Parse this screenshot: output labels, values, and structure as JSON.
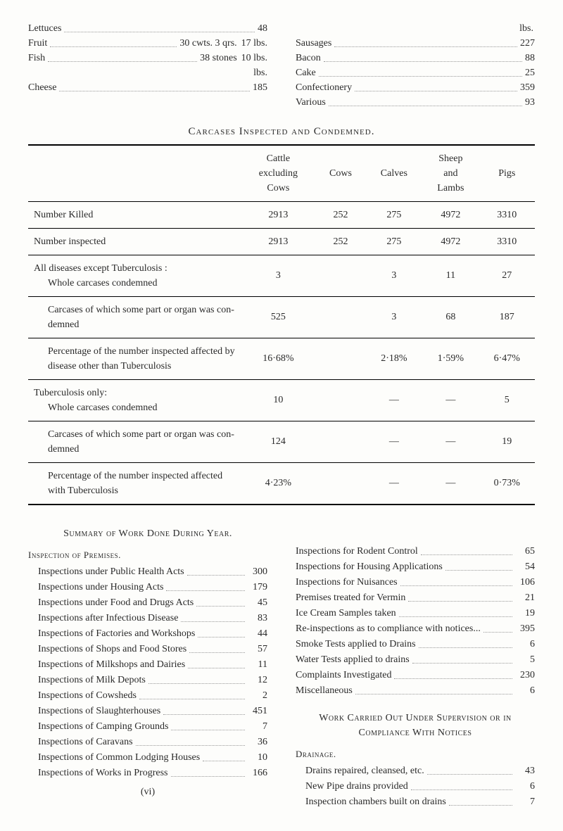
{
  "top_left": {
    "lines": [
      {
        "label": "Lettuces",
        "mid": "",
        "val": "48"
      },
      {
        "label": "Fruit",
        "mid": "30 cwts. 3 qrs.",
        "val": "17 lbs."
      },
      {
        "label": "Fish",
        "mid": "38 stones",
        "val": "10 lbs."
      },
      {
        "label": "",
        "mid": "",
        "val": "lbs."
      },
      {
        "label": "Cheese",
        "mid": "",
        "val": "185"
      }
    ]
  },
  "top_right": {
    "head": "lbs.",
    "lines": [
      {
        "label": "Sausages",
        "val": "227"
      },
      {
        "label": "Bacon",
        "val": "88"
      },
      {
        "label": "Cake",
        "val": "25"
      },
      {
        "label": "Confectionery",
        "val": "359"
      },
      {
        "label": "Various",
        "val": "93"
      }
    ]
  },
  "carcases": {
    "title": "Carcases Inspected and Condemned.",
    "columns": [
      "",
      "Cattle excluding Cows",
      "Cows",
      "Calves",
      "Sheep and Lambs",
      "Pigs"
    ],
    "rows": [
      {
        "label": "Number Killed",
        "vals": [
          "2913",
          "252",
          "275",
          "4972",
          "3310"
        ]
      },
      {
        "label": "Number inspected",
        "vals": [
          "2913",
          "252",
          "275",
          "4972",
          "3310"
        ]
      },
      {
        "label": "All diseases except Tuberculosis :<br><span class='indent1'>Whole carcases condemned</span>",
        "vals": [
          "3",
          "",
          "3",
          "11",
          "27"
        ]
      },
      {
        "label": "<span class='indent1'>Carcases of which some part or organ was con­demned</span>",
        "vals": [
          "525",
          "",
          "3",
          "68",
          "187"
        ]
      },
      {
        "label": "<span class='indent1'>Percentage of the number inspected affected by disease other than Tuberculosis</span>",
        "vals": [
          "16·68%",
          "",
          "2·18%",
          "1·59%",
          "6·47%"
        ]
      },
      {
        "label": "Tuberculosis only:<br><span class='indent1'>Whole carcases condemned</span>",
        "vals": [
          "10",
          "",
          "—",
          "—",
          "5"
        ]
      },
      {
        "label": "<span class='indent1'>Carcases of which some part or organ was con­demned</span>",
        "vals": [
          "124",
          "",
          "—",
          "—",
          "19"
        ]
      },
      {
        "label": "<span class='indent1'>Percentage of the number inspected affected with Tuberculosis</span>",
        "vals": [
          "4·23%",
          "",
          "—",
          "—",
          "0·73%"
        ]
      }
    ]
  },
  "left_summary": {
    "title": "Summary of Work Done During Year.",
    "section": "Inspection of Premises.",
    "items": [
      {
        "label": "Inspections under Public Health Acts",
        "val": "300"
      },
      {
        "label": "Inspections under Housing Acts",
        "val": "179"
      },
      {
        "label": "Inspections under Food and Drugs Acts",
        "val": "45"
      },
      {
        "label": "Inspections after Infectious Disease",
        "val": "83"
      },
      {
        "label": "Inspections of Factories and Workshops",
        "val": "44"
      },
      {
        "label": "Inspections of Shops and Food Stores",
        "val": "57"
      },
      {
        "label": "Inspections of Milkshops and Dairies",
        "val": "11"
      },
      {
        "label": "Inspections of Milk Depots",
        "val": "12"
      },
      {
        "label": "Inspections of Cowsheds",
        "val": "2"
      },
      {
        "label": "Inspections of Slaughterhouses",
        "val": "451"
      },
      {
        "label": "Inspections of Camping Grounds",
        "val": "7"
      },
      {
        "label": "Inspections of Caravans",
        "val": "36"
      },
      {
        "label": "Inspections of Common Lodging Houses",
        "val": "10"
      },
      {
        "label": "Inspections of Works in Progress",
        "val": "166"
      }
    ],
    "roman": "(vi)"
  },
  "right_summary": {
    "items_top": [
      {
        "label": "Inspections for Rodent Control",
        "val": "65"
      },
      {
        "label": "Inspections for Housing Applications",
        "val": "54"
      },
      {
        "label": "Inspections for Nuisances",
        "val": "106"
      },
      {
        "label": "Premises treated for Vermin",
        "val": "21"
      },
      {
        "label": "Ice Cream Samples taken",
        "val": "19"
      },
      {
        "label": "Re-inspections as to compliance with notices...",
        "val": "395"
      },
      {
        "label": "Smoke Tests applied to Drains",
        "val": "6"
      },
      {
        "label": "Water Tests applied to drains",
        "val": "5"
      },
      {
        "label": "Complaints Investigated",
        "val": "230"
      },
      {
        "label": "Miscellaneous",
        "val": "6"
      }
    ],
    "title2": "Work Carried Out Under Supervision or in Compliance With Notices",
    "section2": "Drainage.",
    "items_bottom": [
      {
        "label": "Drains repaired, cleansed, etc.",
        "val": "43"
      },
      {
        "label": "New Pipe drains provided",
        "val": "6"
      },
      {
        "label": "Inspection chambers built on drains",
        "val": "7"
      }
    ]
  }
}
